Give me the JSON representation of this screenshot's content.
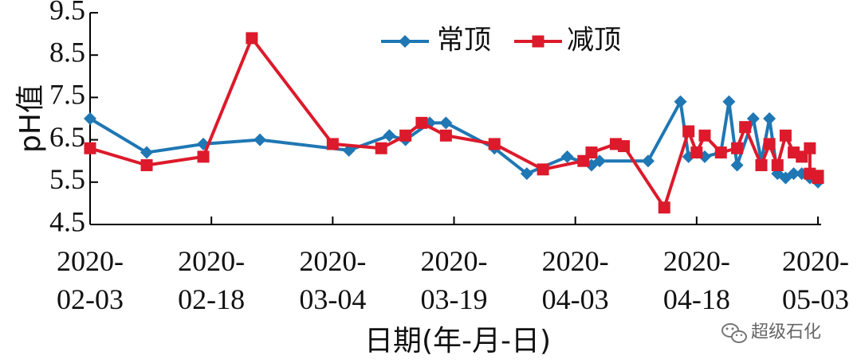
{
  "chart_data": {
    "type": "line",
    "xlabel": "日期(年-月-日)",
    "ylabel": "pH值",
    "ylim": [
      4.5,
      9.5
    ],
    "yticks": [
      "9.5",
      "8.5",
      "7.5",
      "6.5",
      "5.5",
      "4.5"
    ],
    "xlim": [
      "2020-02-03",
      "2020-05-03"
    ],
    "xticks": [
      {
        "date": "2020-02-03",
        "line1": "2020-",
        "line2": "02-03"
      },
      {
        "date": "2020-02-18",
        "line1": "2020-",
        "line2": "02-18"
      },
      {
        "date": "2020-03-04",
        "line1": "2020-",
        "line2": "03-04"
      },
      {
        "date": "2020-03-19",
        "line1": "2020-",
        "line2": "03-19"
      },
      {
        "date": "2020-04-03",
        "line1": "2020-",
        "line2": "04-03"
      },
      {
        "date": "2020-04-18",
        "line1": "2020-",
        "line2": "04-18"
      },
      {
        "date": "2020-05-03",
        "line1": "2020-",
        "line2": "05-03"
      }
    ],
    "legend_position": "top-center",
    "series": [
      {
        "name": "常顶",
        "color": "#1f77b4",
        "marker": "diamond",
        "points": [
          {
            "x": "2020-02-03",
            "y": 7.0
          },
          {
            "x": "2020-02-10",
            "y": 6.2
          },
          {
            "x": "2020-02-17",
            "y": 6.4
          },
          {
            "x": "2020-02-24",
            "y": 6.5
          },
          {
            "x": "2020-03-06",
            "y": 6.25
          },
          {
            "x": "2020-03-11",
            "y": 6.6
          },
          {
            "x": "2020-03-13",
            "y": 6.5
          },
          {
            "x": "2020-03-16",
            "y": 6.9
          },
          {
            "x": "2020-03-18",
            "y": 6.9
          },
          {
            "x": "2020-03-24",
            "y": 6.3
          },
          {
            "x": "2020-03-28",
            "y": 5.7
          },
          {
            "x": "2020-04-02",
            "y": 6.1
          },
          {
            "x": "2020-04-05",
            "y": 5.9
          },
          {
            "x": "2020-04-06",
            "y": 6.0
          },
          {
            "x": "2020-04-12",
            "y": 6.0
          },
          {
            "x": "2020-04-16",
            "y": 7.4
          },
          {
            "x": "2020-04-17",
            "y": 6.1
          },
          {
            "x": "2020-04-18",
            "y": 6.2
          },
          {
            "x": "2020-04-19",
            "y": 6.1
          },
          {
            "x": "2020-04-21",
            "y": 6.2
          },
          {
            "x": "2020-04-22",
            "y": 7.4
          },
          {
            "x": "2020-04-23",
            "y": 5.9
          },
          {
            "x": "2020-04-25",
            "y": 7.0
          },
          {
            "x": "2020-04-26",
            "y": 6.0
          },
          {
            "x": "2020-04-27",
            "y": 7.0
          },
          {
            "x": "2020-04-28",
            "y": 5.7
          },
          {
            "x": "2020-04-29",
            "y": 5.6
          },
          {
            "x": "2020-04-30",
            "y": 5.7
          },
          {
            "x": "2020-05-01",
            "y": 5.7
          },
          {
            "x": "2020-05-02",
            "y": 5.6
          },
          {
            "x": "2020-05-03",
            "y": 5.5
          }
        ]
      },
      {
        "name": "减顶",
        "color": "#dc1a2b",
        "marker": "square",
        "points": [
          {
            "x": "2020-02-03",
            "y": 6.3
          },
          {
            "x": "2020-02-10",
            "y": 5.9
          },
          {
            "x": "2020-02-17",
            "y": 6.1
          },
          {
            "x": "2020-02-23",
            "y": 8.9
          },
          {
            "x": "2020-03-04",
            "y": 6.4
          },
          {
            "x": "2020-03-10",
            "y": 6.3
          },
          {
            "x": "2020-03-13",
            "y": 6.6
          },
          {
            "x": "2020-03-15",
            "y": 6.9
          },
          {
            "x": "2020-03-18",
            "y": 6.6
          },
          {
            "x": "2020-03-24",
            "y": 6.4
          },
          {
            "x": "2020-03-30",
            "y": 5.8
          },
          {
            "x": "2020-04-04",
            "y": 6.0
          },
          {
            "x": "2020-04-05",
            "y": 6.2
          },
          {
            "x": "2020-04-08",
            "y": 6.4
          },
          {
            "x": "2020-04-09",
            "y": 6.35
          },
          {
            "x": "2020-04-14",
            "y": 4.9
          },
          {
            "x": "2020-04-17",
            "y": 6.7
          },
          {
            "x": "2020-04-18",
            "y": 6.2
          },
          {
            "x": "2020-04-19",
            "y": 6.6
          },
          {
            "x": "2020-04-21",
            "y": 6.2
          },
          {
            "x": "2020-04-23",
            "y": 6.3
          },
          {
            "x": "2020-04-24",
            "y": 6.8
          },
          {
            "x": "2020-04-26",
            "y": 5.9
          },
          {
            "x": "2020-04-27",
            "y": 6.4
          },
          {
            "x": "2020-04-28",
            "y": 5.9
          },
          {
            "x": "2020-04-29",
            "y": 6.6
          },
          {
            "x": "2020-04-30",
            "y": 6.2
          },
          {
            "x": "2020-05-01",
            "y": 6.1
          },
          {
            "x": "2020-05-02",
            "y": 6.3
          },
          {
            "x": "2020-05-02",
            "y": 5.7
          },
          {
            "x": "2020-05-03",
            "y": 5.65
          },
          {
            "x": "2020-05-03",
            "y": 5.6
          }
        ]
      }
    ]
  },
  "watermark": {
    "icon": "wechat-icon",
    "text": "超级石化"
  }
}
